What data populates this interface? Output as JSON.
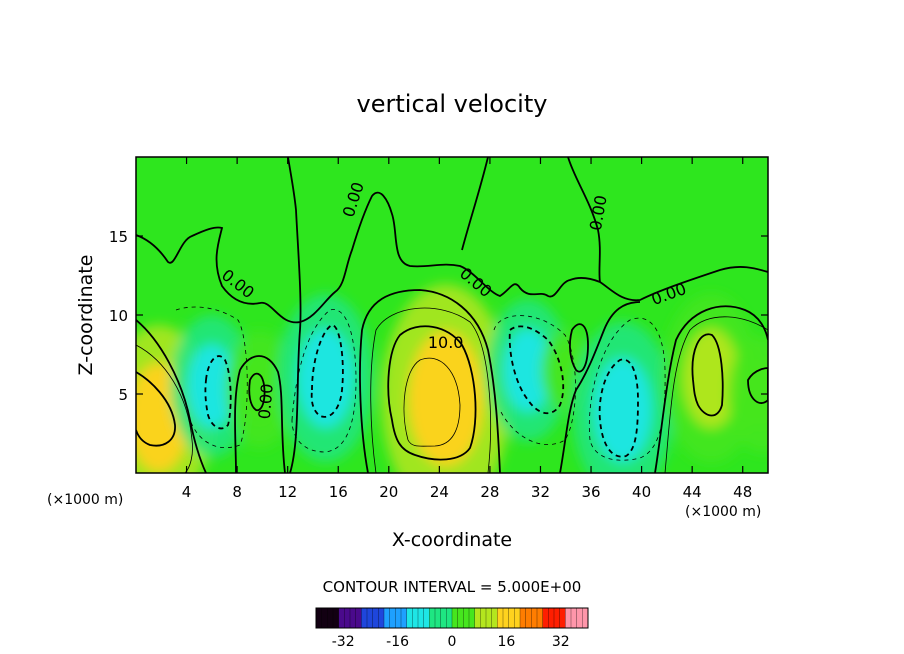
{
  "chart_data": {
    "type": "heatmap",
    "title": "vertical velocity",
    "xlabel": "X-coordinate",
    "ylabel": "Z-coordinate",
    "x_unit_left": "(×1000 m)",
    "x_unit_right": "(×1000 m)",
    "xlim": [
      0,
      50
    ],
    "ylim": [
      0,
      20
    ],
    "x_ticks": [
      4,
      8,
      12,
      16,
      20,
      24,
      28,
      32,
      36,
      40,
      44,
      48
    ],
    "y_ticks": [
      5,
      10,
      15
    ],
    "contour_labels": [
      {
        "text": "10.0",
        "x": 24.5,
        "z": 7.9,
        "angle": 0
      },
      {
        "text": "0.00",
        "x": 17.6,
        "z": 17.2,
        "angle": -72
      },
      {
        "text": "0.00",
        "x": 7.8,
        "z": 11.7,
        "angle": 38
      },
      {
        "text": "0.00",
        "x": 10.7,
        "z": 4.5,
        "angle": -85
      },
      {
        "text": "0.00",
        "x": 26.6,
        "z": 11.8,
        "angle": 40
      },
      {
        "text": "0.00",
        "x": 37.0,
        "z": 16.4,
        "angle": -80
      },
      {
        "text": "0.00",
        "x": 42.3,
        "z": 11.0,
        "angle": -20
      }
    ],
    "features": [
      {
        "x": 1.8,
        "z": 3.5,
        "value": 14
      },
      {
        "x": 6.0,
        "z": 5.5,
        "value": -9
      },
      {
        "x": 9.8,
        "z": 5.3,
        "value": 6
      },
      {
        "x": 15.0,
        "z": 6.0,
        "value": -12
      },
      {
        "x": 24.5,
        "z": 4.7,
        "value": 19
      },
      {
        "x": 31.0,
        "z": 6.5,
        "value": -9
      },
      {
        "x": 34.0,
        "z": 6.5,
        "value": 2
      },
      {
        "x": 38.5,
        "z": 4.0,
        "value": -13
      },
      {
        "x": 45.5,
        "z": 6.0,
        "value": 12
      },
      {
        "x": 49.5,
        "z": 5.0,
        "value": 6
      }
    ],
    "contour_interval_text": "CONTOUR INTERVAL = 5.000E+00",
    "colorbar": {
      "range": [
        -40,
        40
      ],
      "ticks": [
        "-32",
        "-16",
        "0",
        "16",
        "32"
      ],
      "tick_values": [
        -32,
        -16,
        0,
        16,
        32
      ],
      "colors": [
        "#120012",
        "#4a0a8c",
        "#1e46dc",
        "#1ea0ff",
        "#1ee6e6",
        "#1ee682",
        "#46e61e",
        "#b4e61e",
        "#ffd21e",
        "#ff7d00",
        "#ff1e00",
        "#ff96aa"
      ]
    },
    "background_color": "#2ee61e"
  }
}
